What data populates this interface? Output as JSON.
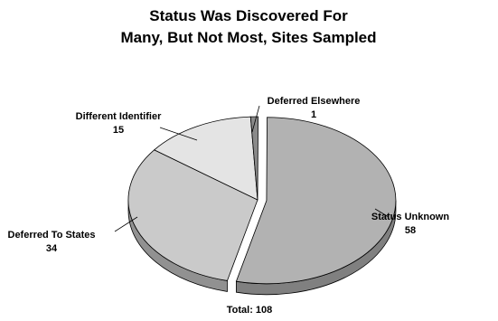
{
  "chart_data": {
    "type": "pie",
    "title_lines": [
      "Status Was Discovered For",
      "Many, But Not Most, Sites Sampled"
    ],
    "slices": [
      {
        "name": "Status Unknown",
        "value": 58,
        "color": "#b2b2b2"
      },
      {
        "name": "Deferred To States",
        "value": 34,
        "color": "#cacaca"
      },
      {
        "name": "Different Identifier",
        "value": 15,
        "color": "#e4e4e4"
      },
      {
        "name": "Deferred Elsewhere",
        "value": 1,
        "color": "#8a8a8a"
      }
    ],
    "total_label": "Total: 108",
    "style": "3d-exploded",
    "legend": "none"
  }
}
